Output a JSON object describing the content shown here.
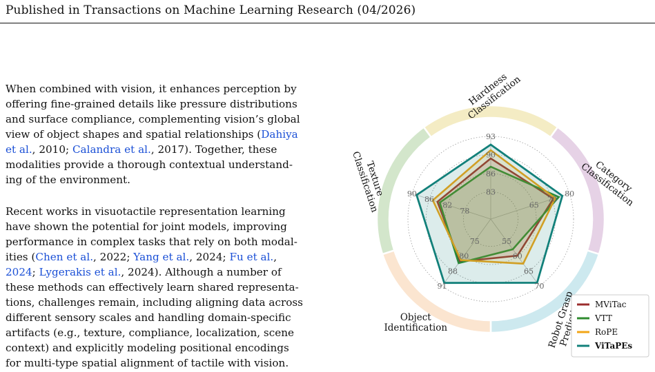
{
  "header": "Published in Transactions on Machine Learning Research (04/2026)",
  "para1": [
    {
      "t": "When combined with vision, it enhances perception by"
    },
    {
      "t": "offering fine-grained details like pressure distributions"
    },
    {
      "t": "and surface compliance, complementing vision’s global"
    },
    {
      "t": "view of object shapes and spatial relationships (",
      "c": "Dahiya"
    },
    {
      "c": "et al.",
      "t": ", 2010; ",
      "c2": "Calandra et al.",
      "t2": ", 2017). Together, these"
    },
    {
      "t": "modalities provide a thorough contextual understand-"
    },
    {
      "t": "ing of the environment."
    }
  ],
  "para2": [
    {
      "t": "Recent works in visuotactile representation learning"
    },
    {
      "t": "have shown the potential for joint models, improving"
    },
    {
      "t": "performance in complex tasks that rely on both modal-"
    },
    {
      "t": "ities (",
      "c": "Chen et al.",
      "t2": ", 2022; ",
      "c2": "Yang et al.",
      "t3": ", 2024; ",
      "c3": "Fu et al.",
      "t4": ","
    },
    {
      "c": "2024",
      "t": "; ",
      "c2": "Lygerakis et al.",
      "t2": ", 2024). Although a number of"
    },
    {
      "t": "these methods can effectively learn shared representa-"
    },
    {
      "t": "tions, challenges remain, including aligning data across"
    },
    {
      "t": "different sensory scales and handling domain-specific"
    },
    {
      "t": "artifacts (e.g., texture, compliance, localization, scene"
    },
    {
      "t": "context) and explicitly modeling positional encodings"
    },
    {
      "t": "for multi-type spatial alignment of tactile with vision."
    }
  ],
  "chart_data": {
    "type": "radar",
    "axes": [
      {
        "name": "Category Classification",
        "label_lines": [
          "Category",
          "Classification"
        ],
        "ticks": [
          "65",
          "70",
          "80"
        ],
        "range": [
          60,
          82
        ]
      },
      {
        "name": "Robot Grasp Prediction",
        "label_lines": [
          "Robot Grasp",
          "Prediction"
        ],
        "ticks": [
          "55",
          "60",
          "65",
          "70"
        ],
        "range": [
          50,
          71
        ]
      },
      {
        "name": "Object Identification",
        "label_lines": [
          "Object",
          "Identification"
        ],
        "ticks": [
          "75",
          "80",
          "88",
          "91"
        ],
        "range": [
          70,
          92
        ]
      },
      {
        "name": "Texture Classification",
        "label_lines": [
          "Texture",
          "Classification"
        ],
        "ticks": [
          "78",
          "82",
          "86",
          "90"
        ],
        "range": [
          74,
          91
        ]
      },
      {
        "name": "Hardness Classification",
        "label_lines": [
          "Hardness",
          "Classification"
        ],
        "ticks": [
          "83",
          "86",
          "90",
          "93"
        ],
        "range": [
          80,
          95
        ]
      }
    ],
    "series": [
      {
        "name": "MViTac",
        "color": "#9b2d2d",
        "values": [
          77.5,
          61.5,
          84.0,
          85.5,
          91.0
        ]
      },
      {
        "name": "VTT",
        "color": "#2e8b2e",
        "values": [
          79.0,
          59.5,
          84.5,
          85.0,
          89.5
        ]
      },
      {
        "name": "RoPE",
        "color": "#f2a516",
        "values": [
          78.0,
          64.0,
          83.5,
          86.5,
          92.5
        ]
      },
      {
        "name": "ViTaPEs",
        "color": "#12807a",
        "bold": true,
        "values": [
          80.0,
          70.0,
          91.0,
          90.0,
          93.5
        ]
      }
    ],
    "ring_colors": [
      "#e6d2e6",
      "#cde9ef",
      "#fbe5d0",
      "#d3e6cb",
      "#f4ecc4"
    ],
    "legend_position": "lower-right"
  }
}
